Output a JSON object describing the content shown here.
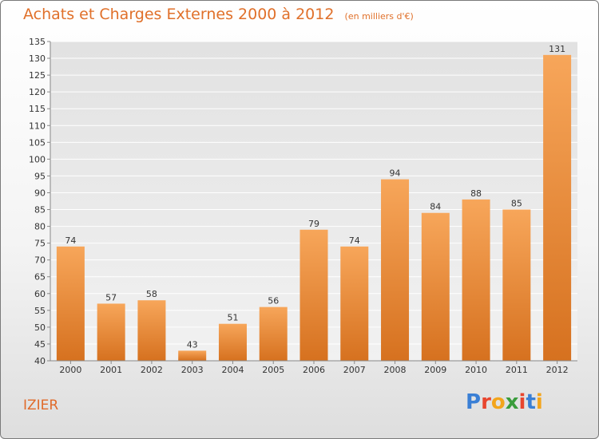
{
  "title": "Achats et Charges Externes 2000 à 2012",
  "unit_note": "(en milliers d'€)",
  "commune": "IZIER",
  "brand": {
    "letters": [
      "P",
      "r",
      "o",
      "x",
      "i",
      "t",
      "i"
    ],
    "colors": [
      "#3a7fd5",
      "#e8452e",
      "#f3a51c",
      "#3a9c3c",
      "#e8452e",
      "#3a7fd5",
      "#f3a51c"
    ]
  },
  "colors": {
    "title": "#e0702a",
    "bar_top": "#f7a65a",
    "bar_bottom": "#d6711f",
    "axis": "#888888",
    "grid": "#ffffff"
  },
  "chart_data": {
    "type": "bar",
    "title": "Achats et Charges Externes 2000 à 2012",
    "subtitle": "(en milliers d'€)",
    "categories": [
      "2000",
      "2001",
      "2002",
      "2003",
      "2004",
      "2005",
      "2006",
      "2007",
      "2008",
      "2009",
      "2010",
      "2011",
      "2012"
    ],
    "values": [
      74,
      57,
      58,
      43,
      51,
      56,
      79,
      74,
      94,
      84,
      88,
      85,
      131
    ],
    "ylim": [
      40,
      135
    ],
    "ytick_step": 5,
    "grid": true,
    "data_labels": true
  }
}
